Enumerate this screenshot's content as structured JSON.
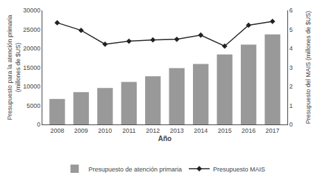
{
  "chart_data": {
    "type": "bar",
    "xlabel": "Año",
    "ylabel": "Presupuesto para la atención primaria\n(millones de $US)",
    "y2label": "Presupuesto del MAIS (millones de $US)",
    "categories": [
      "2008",
      "2009",
      "2010",
      "2011",
      "2012",
      "2013",
      "2014",
      "2015",
      "2016",
      "2017"
    ],
    "series": [
      {
        "name": "Presupuesto de atención primaria",
        "type": "bar",
        "color": "#999999",
        "values": [
          6700,
          8500,
          9600,
          11200,
          12700,
          14800,
          15900,
          18400,
          21000,
          23700
        ]
      },
      {
        "name": "Presupuesto MAIS",
        "type": "line",
        "color": "#222222",
        "marker": "diamond",
        "line_style": "solid",
        "axis": "y2",
        "values": [
          5.35,
          4.95,
          4.22,
          4.38,
          4.45,
          4.48,
          4.7,
          4.12,
          5.22,
          5.42
        ]
      }
    ],
    "ylim": [
      0,
      30000
    ],
    "yticks": [
      0,
      5000,
      10000,
      15000,
      20000,
      25000,
      30000
    ],
    "y2lim": [
      0,
      6
    ],
    "y2ticks": [
      0,
      1,
      2,
      3,
      4,
      5,
      6
    ],
    "grid": false,
    "legend": "bottom"
  }
}
